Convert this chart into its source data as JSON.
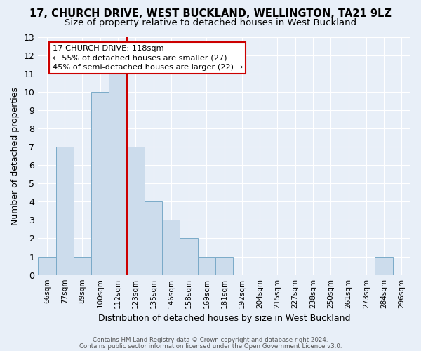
{
  "title": "17, CHURCH DRIVE, WEST BUCKLAND, WELLINGTON, TA21 9LZ",
  "subtitle": "Size of property relative to detached houses in West Buckland",
  "xlabel": "Distribution of detached houses by size in West Buckland",
  "ylabel": "Number of detached properties",
  "bar_labels": [
    "66sqm",
    "77sqm",
    "89sqm",
    "100sqm",
    "112sqm",
    "123sqm",
    "135sqm",
    "146sqm",
    "158sqm",
    "169sqm",
    "181sqm",
    "192sqm",
    "204sqm",
    "215sqm",
    "227sqm",
    "238sqm",
    "250sqm",
    "261sqm",
    "273sqm",
    "284sqm",
    "296sqm"
  ],
  "bar_values": [
    1,
    7,
    1,
    10,
    11,
    7,
    4,
    3,
    2,
    1,
    1,
    0,
    0,
    0,
    0,
    0,
    0,
    0,
    0,
    1,
    0
  ],
  "bar_color": "#ccdcec",
  "bar_edge_color": "#7aaac8",
  "vline_x": 4.5,
  "vline_color": "#cc0000",
  "ylim": [
    0,
    13
  ],
  "yticks": [
    0,
    1,
    2,
    3,
    4,
    5,
    6,
    7,
    8,
    9,
    10,
    11,
    12,
    13
  ],
  "annotation_title": "17 CHURCH DRIVE: 118sqm",
  "annotation_line1": "← 55% of detached houses are smaller (27)",
  "annotation_line2": "45% of semi-detached houses are larger (22) →",
  "annotation_box_color": "#ffffff",
  "annotation_box_edge": "#cc0000",
  "footer1": "Contains HM Land Registry data © Crown copyright and database right 2024.",
  "footer2": "Contains public sector information licensed under the Open Government Licence v3.0.",
  "bg_color": "#e8eff8",
  "grid_color": "#ffffff",
  "title_fontsize": 10.5,
  "subtitle_fontsize": 9.5
}
